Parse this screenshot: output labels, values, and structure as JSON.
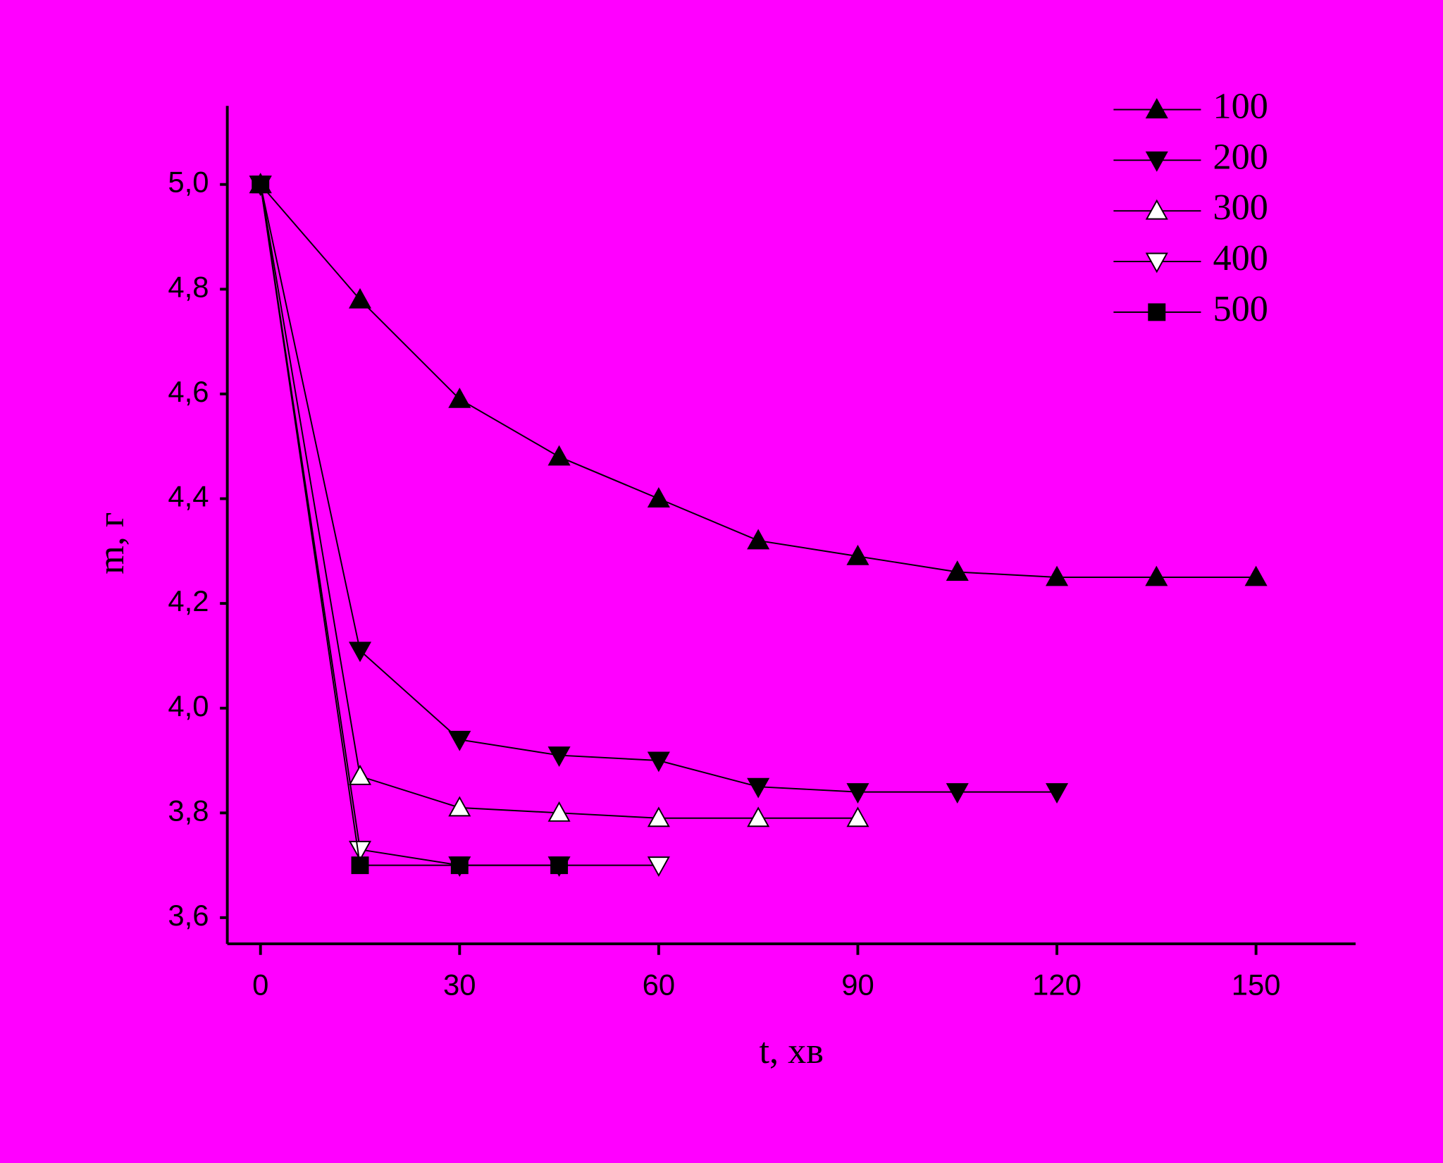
{
  "chart_data": {
    "type": "line",
    "xlabel": "t, хв",
    "ylabel": "m, г",
    "xlim": [
      -5,
      165
    ],
    "ylim": [
      3.55,
      5.15
    ],
    "xticks": [
      0,
      30,
      60,
      90,
      120,
      150
    ],
    "yticks": [
      {
        "value": 3.6,
        "label": "3,6"
      },
      {
        "value": 3.8,
        "label": "3,8"
      },
      {
        "value": 4.0,
        "label": "4,0"
      },
      {
        "value": 4.2,
        "label": "4,2"
      },
      {
        "value": 4.4,
        "label": "4,4"
      },
      {
        "value": 4.6,
        "label": "4,6"
      },
      {
        "value": 4.8,
        "label": "4,8"
      },
      {
        "value": 5.0,
        "label": "5,0"
      }
    ],
    "legend": "upper right",
    "background": "#ff00ff",
    "series": [
      {
        "name": "100",
        "color": "#000000",
        "marker": "triangle-up",
        "filled": true,
        "x": [
          0,
          15,
          30,
          45,
          60,
          75,
          90,
          105,
          120,
          135,
          150
        ],
        "values": [
          5.0,
          4.78,
          4.59,
          4.48,
          4.4,
          4.32,
          4.29,
          4.26,
          4.25,
          4.25,
          4.25
        ]
      },
      {
        "name": "200",
        "color": "#000000",
        "marker": "triangle-down",
        "filled": true,
        "x": [
          0,
          15,
          30,
          45,
          60,
          75,
          90,
          105,
          120
        ],
        "values": [
          5.0,
          4.11,
          3.94,
          3.91,
          3.9,
          3.85,
          3.84,
          3.84,
          3.84
        ]
      },
      {
        "name": "300",
        "color": "#000000",
        "marker": "triangle-up",
        "filled": false,
        "x": [
          0,
          15,
          30,
          45,
          60,
          75,
          90
        ],
        "values": [
          5.0,
          3.87,
          3.81,
          3.8,
          3.79,
          3.79,
          3.79
        ]
      },
      {
        "name": "400",
        "color": "#000000",
        "marker": "triangle-down",
        "filled": false,
        "x": [
          0,
          15,
          30,
          45,
          60
        ],
        "values": [
          5.0,
          3.73,
          3.7,
          3.7,
          3.7
        ]
      },
      {
        "name": "500",
        "color": "#000000",
        "marker": "square",
        "filled": true,
        "x": [
          0,
          15,
          30,
          45
        ],
        "values": [
          5.0,
          3.7,
          3.7,
          3.7
        ]
      }
    ]
  }
}
